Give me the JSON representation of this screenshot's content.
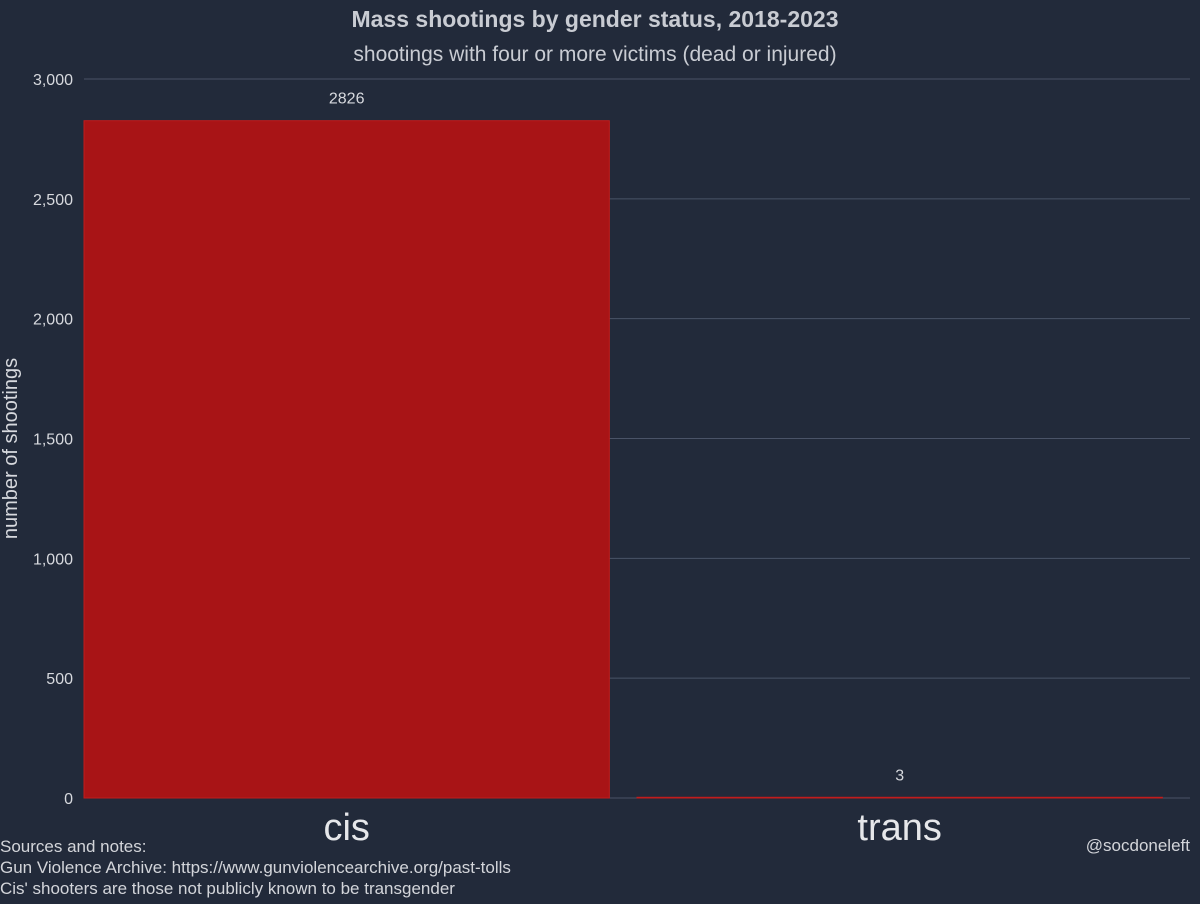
{
  "chart_data": {
    "type": "bar",
    "title": "Mass shootings by gender status, 2018-2023",
    "subtitle": "shootings with four or more victims (dead or injured)",
    "xlabel": "",
    "ylabel": "number of shootings",
    "categories": [
      "cis",
      "trans"
    ],
    "values": [
      2826,
      3
    ],
    "data_labels": [
      "2826",
      "3"
    ],
    "ylim": [
      0,
      3000
    ],
    "yticks": [
      0,
      500,
      1000,
      1500,
      2000,
      2500,
      3000
    ],
    "ytick_labels": [
      "0",
      "500",
      "1,000",
      "1,500",
      "2,000",
      "2,500",
      "3,000"
    ],
    "grid": true,
    "legend": "none",
    "colors": {
      "background": "#222a3a",
      "bar": "#a81416",
      "bar_edge": "#c21c1c",
      "grid": "#4a5367",
      "text": "#d7d9de"
    }
  },
  "notes": {
    "heading": "Sources and notes:",
    "line1": "Gun Violence Archive: https://www.gunviolencearchive.org/past-tolls",
    "line2": "Cis' shooters are those not publicly known to be transgender"
  },
  "credit": "@socdoneleft"
}
